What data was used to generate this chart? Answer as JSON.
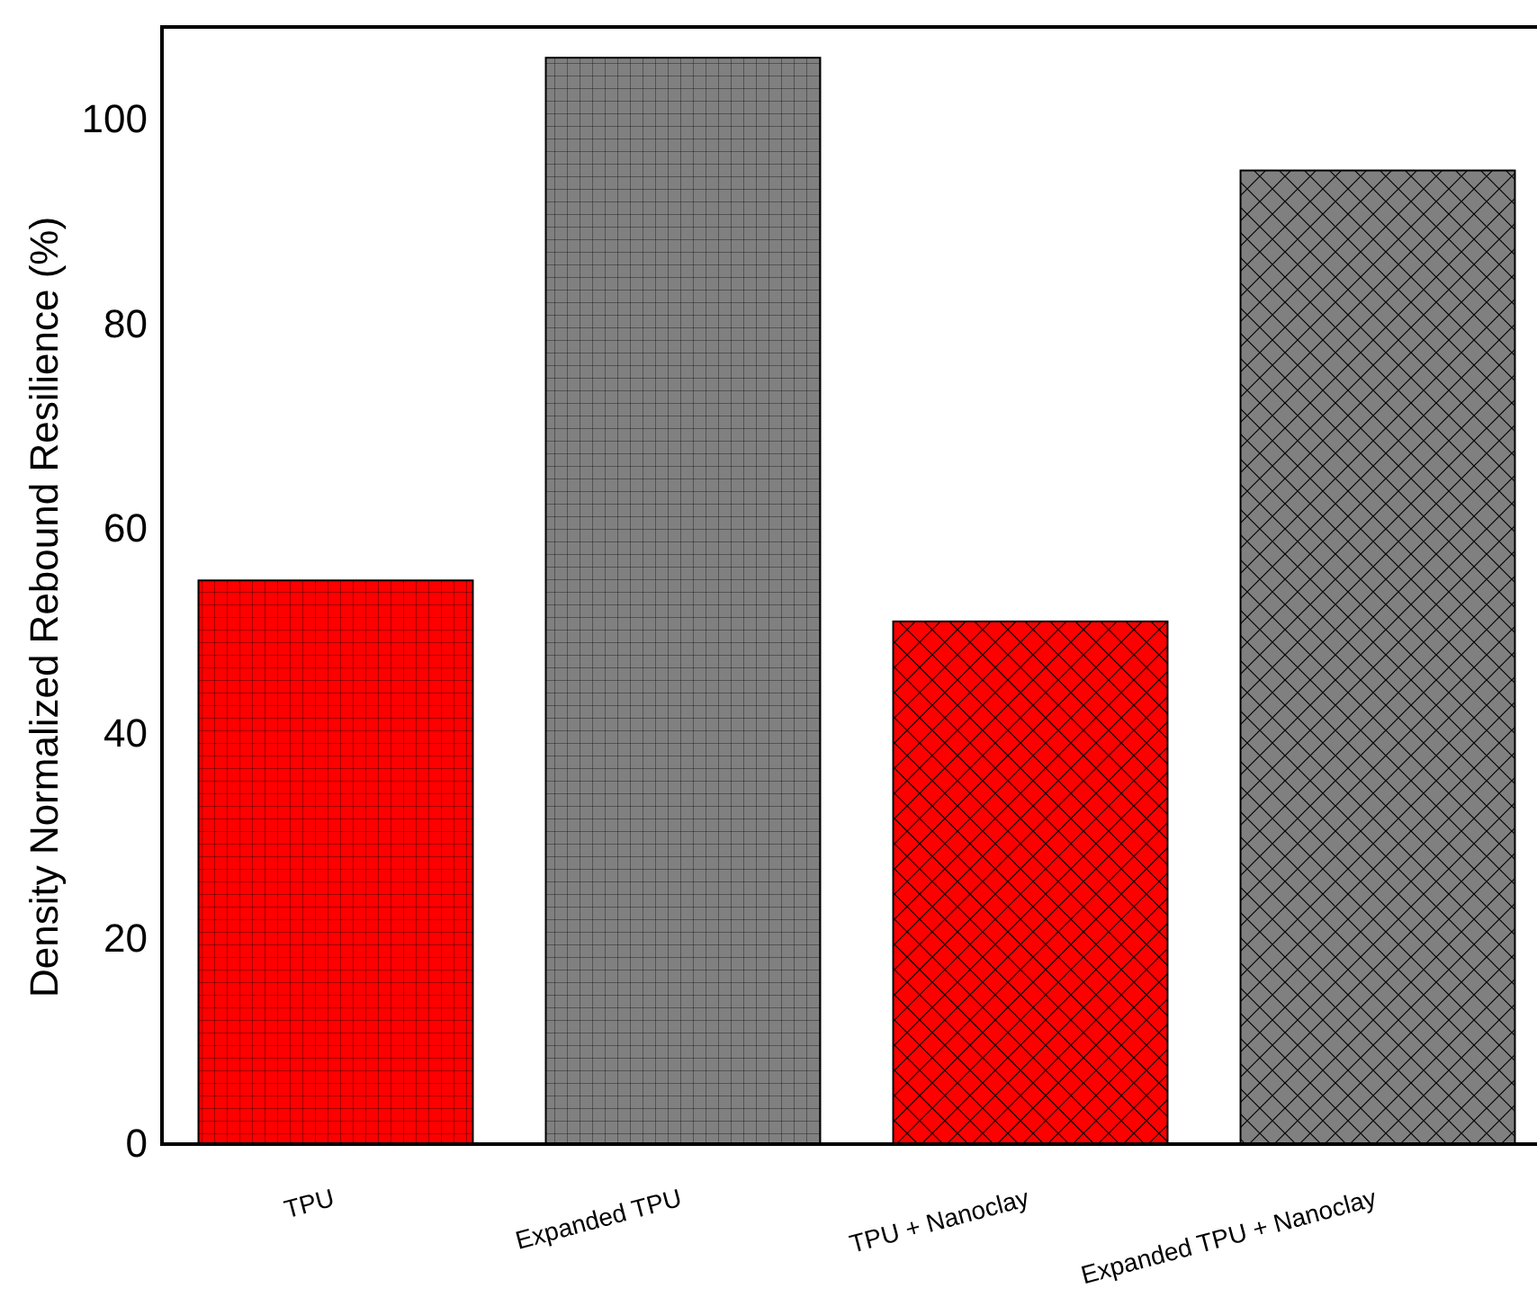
{
  "chart_data": {
    "type": "bar",
    "ylabel": "Density Normalized Rebound Resilience (%)",
    "categories": [
      "TPU",
      "Expanded TPU",
      "TPU + Nanoclay",
      "Expanded TPU + Nanoclay"
    ],
    "values": [
      55,
      106,
      51,
      95
    ],
    "colors": [
      "#ff0000",
      "#808080",
      "#ff0000",
      "#808080"
    ],
    "ylim": [
      0,
      109
    ],
    "yticks": [
      0,
      20,
      40,
      60,
      80,
      100
    ],
    "grid": false
  }
}
